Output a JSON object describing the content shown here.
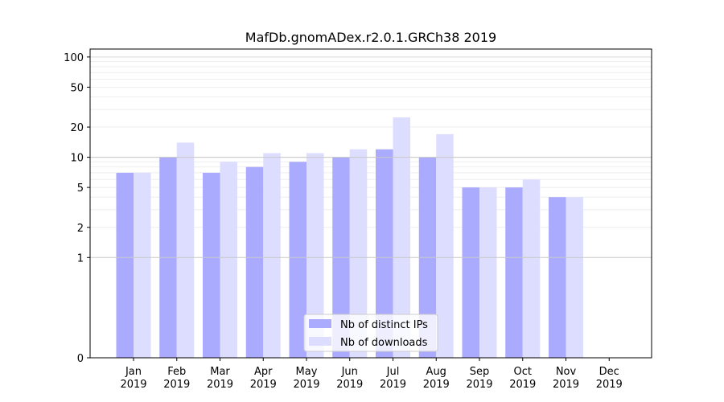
{
  "chart_data": {
    "type": "bar",
    "title": "MafDb.gnomADex.r2.0.1.GRCh38 2019",
    "xlabel": "",
    "ylabel": "",
    "y_scale": "symlog",
    "ylim": [
      0,
      120
    ],
    "y_ticks": [
      0,
      1,
      2,
      5,
      10,
      20,
      50,
      100
    ],
    "categories": [
      [
        "Jan",
        "2019"
      ],
      [
        "Feb",
        "2019"
      ],
      [
        "Mar",
        "2019"
      ],
      [
        "Apr",
        "2019"
      ],
      [
        "May",
        "2019"
      ],
      [
        "Jun",
        "2019"
      ],
      [
        "Jul",
        "2019"
      ],
      [
        "Aug",
        "2019"
      ],
      [
        "Sep",
        "2019"
      ],
      [
        "Oct",
        "2019"
      ],
      [
        "Nov",
        "2019"
      ],
      [
        "Dec",
        "2019"
      ]
    ],
    "series": [
      {
        "name": "Nb of distinct IPs",
        "color": "#aaaaff",
        "values": [
          7,
          10,
          7,
          8,
          9,
          10,
          12,
          10,
          5,
          5,
          4,
          0
        ]
      },
      {
        "name": "Nb of downloads",
        "color": "#ddddff",
        "values": [
          7,
          14,
          9,
          11,
          11,
          12,
          25,
          17,
          5,
          6,
          4,
          0
        ]
      }
    ],
    "legend_position": "lower-center",
    "grid": true
  }
}
